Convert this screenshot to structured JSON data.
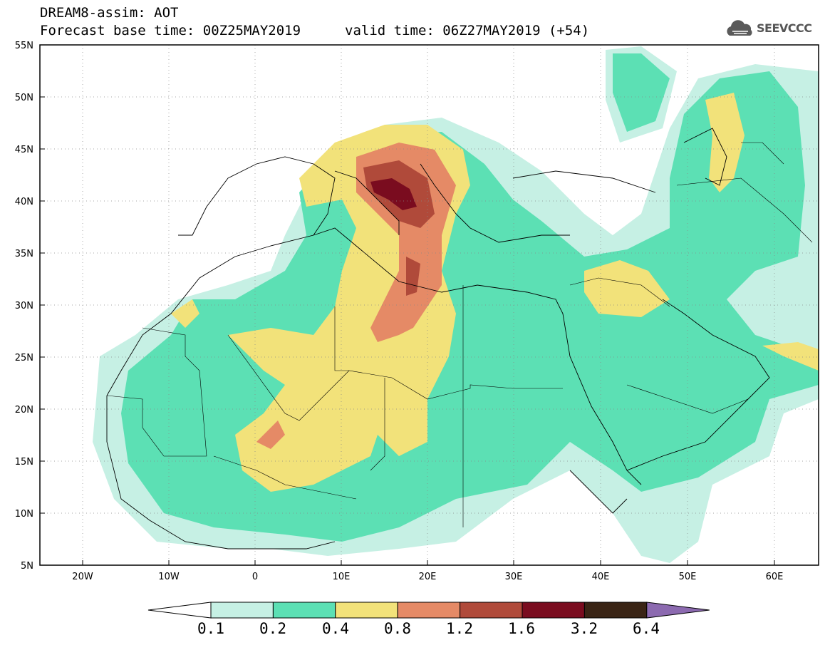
{
  "header": {
    "line1": "DREAM8-assim: AOT",
    "line2": "Forecast base time: 00Z25MAY2019",
    "valid": "valid time: 06Z27MAY2019 (+54)"
  },
  "logo": {
    "text": "SEEVCCC",
    "icon": "cloud-logo-icon"
  },
  "axes": {
    "lat_labels": [
      "55N",
      "50N",
      "45N",
      "40N",
      "35N",
      "30N",
      "25N",
      "20N",
      "15N",
      "10N",
      "5N"
    ],
    "lon_labels": [
      "20W",
      "10W",
      "0",
      "10E",
      "20E",
      "30E",
      "40E",
      "50E",
      "60E"
    ]
  },
  "colorbar": {
    "labels": [
      "0.1",
      "0.2",
      "0.4",
      "0.8",
      "1.2",
      "1.6",
      "3.2",
      "6.4"
    ],
    "colors": [
      "#ffffff",
      "#c6f0e4",
      "#5ce0b4",
      "#f2e27a",
      "#e58a66",
      "#b04a3a",
      "#7a0c1f",
      "#3a2415",
      "#8c6ab0"
    ]
  }
}
